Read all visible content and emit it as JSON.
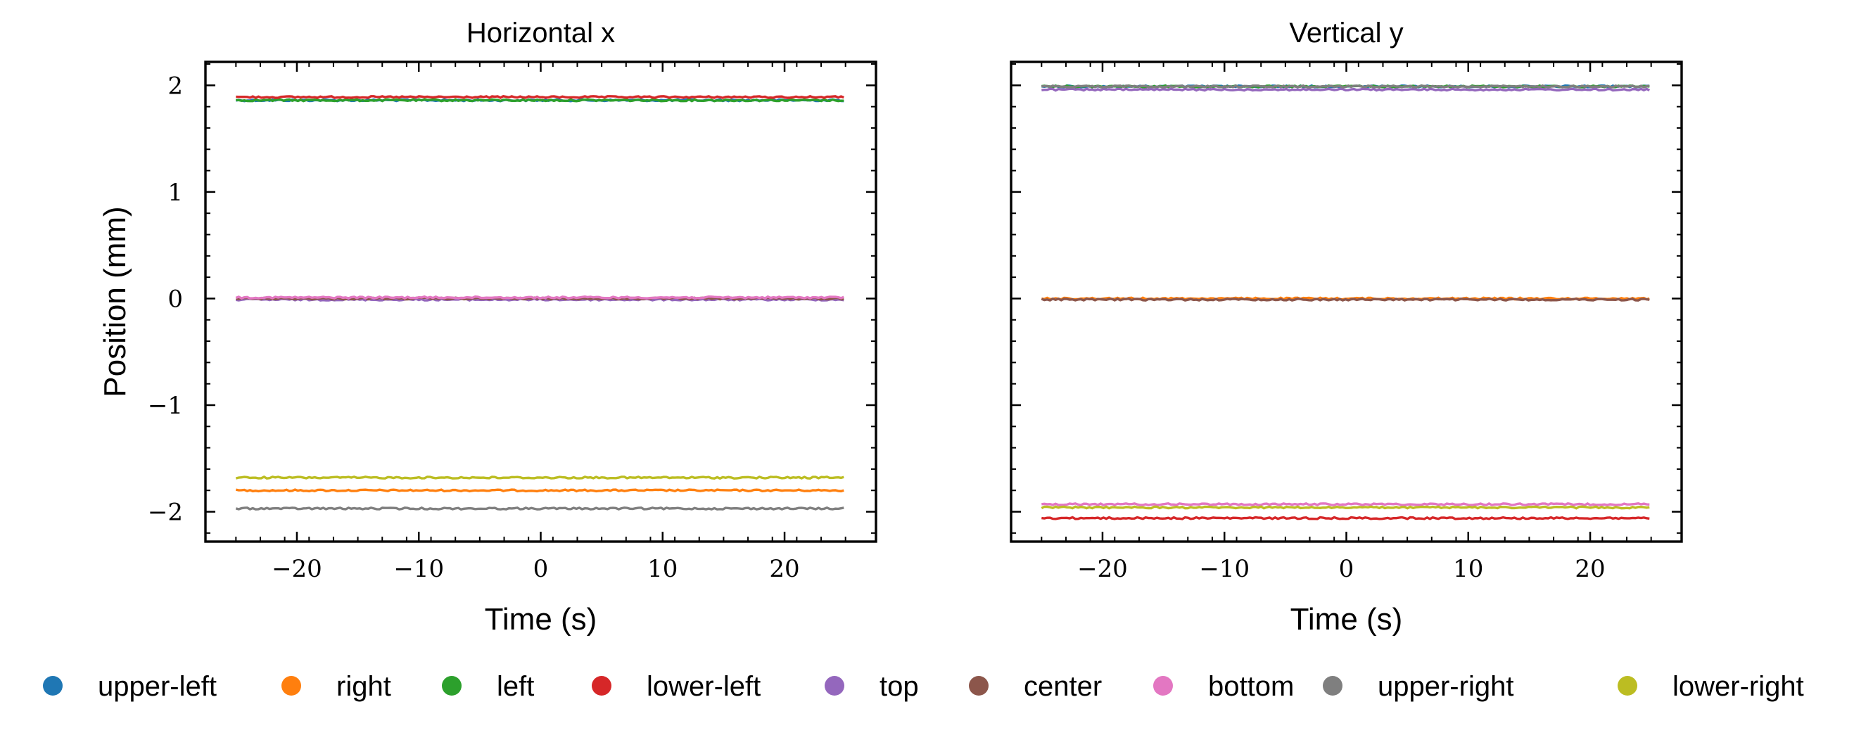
{
  "chart_data": [
    {
      "type": "line",
      "title": "Horizontal x",
      "xlabel": "Time (s)",
      "ylabel": "Position (mm)",
      "xlim": [
        -27.5,
        27.5
      ],
      "ylim": [
        -2.28,
        2.22
      ],
      "xticks": [
        -20,
        -10,
        0,
        10,
        20
      ],
      "xtick_labels": [
        "−20",
        "−10",
        "0",
        "10",
        "20"
      ],
      "yticks": [
        -2,
        -1,
        0,
        1,
        2
      ],
      "ytick_labels": [
        "−2",
        "−1",
        "0",
        "1",
        "2"
      ],
      "x_range": [
        -25,
        25
      ],
      "series": [
        {
          "name": "upper-left",
          "color": "#1f77b4",
          "value": 1.86
        },
        {
          "name": "right",
          "color": "#ff7f0e",
          "value": -1.8
        },
        {
          "name": "left",
          "color": "#2ca02c",
          "value": 1.86
        },
        {
          "name": "lower-left",
          "color": "#d62728",
          "value": 1.89
        },
        {
          "name": "top",
          "color": "#9467bd",
          "value": -0.01
        },
        {
          "name": "center",
          "color": "#8c564b",
          "value": 0.0
        },
        {
          "name": "bottom",
          "color": "#e377c2",
          "value": 0.01
        },
        {
          "name": "upper-right",
          "color": "#7f7f7f",
          "value": -1.97
        },
        {
          "name": "lower-right",
          "color": "#bcbd22",
          "value": -1.68
        }
      ]
    },
    {
      "type": "line",
      "title": "Vertical y",
      "xlabel": "Time (s)",
      "ylabel": "",
      "xlim": [
        -27.5,
        27.5
      ],
      "ylim": [
        -2.28,
        2.22
      ],
      "xticks": [
        -20,
        -10,
        0,
        10,
        20
      ],
      "xtick_labels": [
        "−20",
        "−10",
        "0",
        "10",
        "20"
      ],
      "yticks": [
        -2,
        -1,
        0,
        1,
        2
      ],
      "ytick_labels": [],
      "x_range": [
        -25,
        25
      ],
      "series": [
        {
          "name": "upper-left",
          "color": "#1f77b4",
          "value": 1.99
        },
        {
          "name": "right",
          "color": "#ff7f0e",
          "value": 0.0
        },
        {
          "name": "left",
          "color": "#2ca02c",
          "value": 1.99
        },
        {
          "name": "lower-left",
          "color": "#d62728",
          "value": -2.06
        },
        {
          "name": "top",
          "color": "#9467bd",
          "value": 1.96
        },
        {
          "name": "center",
          "color": "#8c564b",
          "value": -0.01
        },
        {
          "name": "bottom",
          "color": "#e377c2",
          "value": -1.93
        },
        {
          "name": "upper-right",
          "color": "#7f7f7f",
          "value": 1.99
        },
        {
          "name": "lower-right",
          "color": "#bcbd22",
          "value": -1.96
        }
      ]
    }
  ],
  "legend": {
    "placement": "bottom",
    "entries": [
      {
        "label": "upper-left",
        "color": "#1f77b4"
      },
      {
        "label": "right",
        "color": "#ff7f0e"
      },
      {
        "label": "left",
        "color": "#2ca02c"
      },
      {
        "label": "lower-left",
        "color": "#d62728"
      },
      {
        "label": "top",
        "color": "#9467bd"
      },
      {
        "label": "center",
        "color": "#8c564b"
      },
      {
        "label": "bottom",
        "color": "#e377c2"
      },
      {
        "label": "upper-right",
        "color": "#7f7f7f"
      },
      {
        "label": "lower-right",
        "color": "#bcbd22"
      }
    ]
  }
}
